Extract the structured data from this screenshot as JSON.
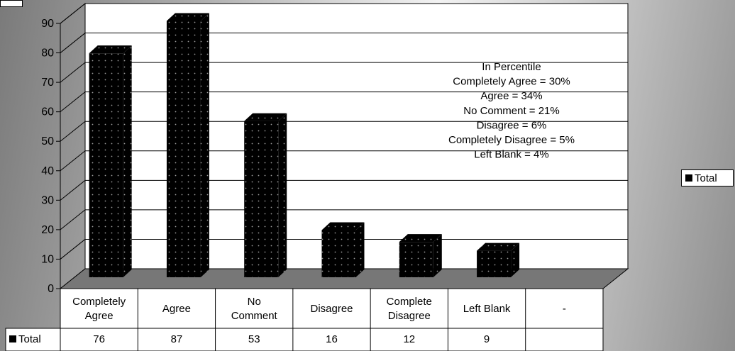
{
  "chart_data": {
    "type": "bar",
    "title": "",
    "categories": [
      "Completely Agree",
      "Agree",
      "No Comment",
      "Disagree",
      "Complete Disagree",
      "Left Blank",
      "-"
    ],
    "category_lines": [
      [
        "Completely",
        "Agree"
      ],
      [
        "Agree"
      ],
      [
        "No",
        "Comment"
      ],
      [
        "Disagree"
      ],
      [
        "Complete",
        "Disagree"
      ],
      [
        "Left Blank"
      ],
      [
        "-"
      ]
    ],
    "series": [
      {
        "name": "Total",
        "values": [
          76,
          87,
          53,
          16,
          12,
          9,
          null
        ]
      }
    ],
    "table_values": [
      "76",
      "87",
      "53",
      "16",
      "12",
      "9",
      ""
    ],
    "yticks": [
      0,
      10,
      20,
      30,
      40,
      50,
      60,
      70,
      80,
      90
    ],
    "ylim": [
      0,
      90
    ],
    "xlabel": "",
    "ylabel": "",
    "grid": true,
    "style": "3d-column-dotted",
    "annotation_lines": [
      "In Percentile",
      "Completely Agree = 30%",
      "Agree = 34%",
      "No Comment = 21%",
      "Disagree = 6%",
      "Completely Disagree = 5%",
      "Left Blank = 4%"
    ],
    "legend": {
      "position": "right",
      "entries": [
        "Total"
      ]
    },
    "data_table": {
      "series_label": "Total"
    },
    "colors": {
      "bar": "#000000",
      "dots": "#9a9a9a",
      "floor": "#777777",
      "plot_bg": "#ffffff"
    }
  }
}
